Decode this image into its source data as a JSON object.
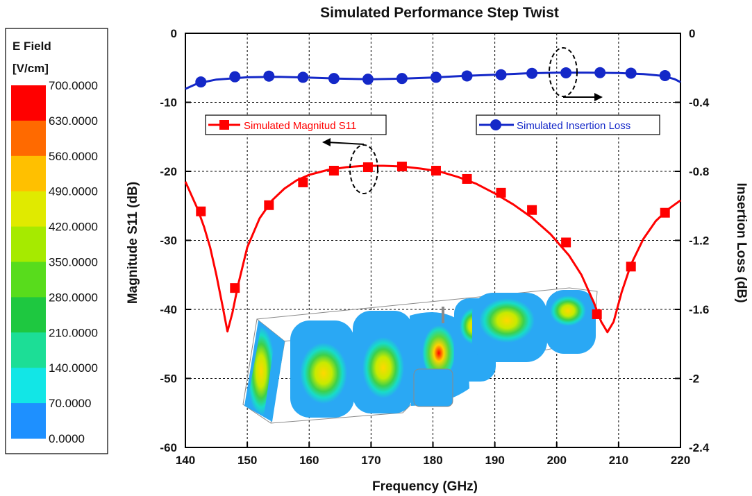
{
  "chart_data": {
    "type": "line",
    "title": "Simulated Performance Step Twist",
    "xlabel": "Frequency (GHz)",
    "ylabel": "Magnitude S11 (dB)",
    "y2label": "Insertion Loss (dB)",
    "xlim": [
      140,
      220
    ],
    "ylim": [
      -60,
      0
    ],
    "y2lim": [
      -2.4,
      0
    ],
    "x_ticks": [
      "140",
      "150",
      "160",
      "170",
      "180",
      "190",
      "200",
      "210",
      "220"
    ],
    "y_ticks": [
      "0",
      "-10",
      "-20",
      "-30",
      "-40",
      "-50",
      "-60"
    ],
    "y2_ticks": [
      "0",
      "-0.4",
      "-0.8",
      "-1.2",
      "-1.6",
      "-2",
      "-2.4"
    ],
    "grid": true,
    "series": [
      {
        "name": "Simulated Magnitud S11",
        "axis": "left",
        "color": "#ff0000",
        "marker": "square",
        "curve": [
          [
            140,
            -21.5
          ],
          [
            141,
            -23.5
          ],
          [
            142,
            -25.5
          ],
          [
            143,
            -28
          ],
          [
            144,
            -31
          ],
          [
            145,
            -35
          ],
          [
            146,
            -39.5
          ],
          [
            146.8,
            -43.2
          ],
          [
            147.6,
            -40.5
          ],
          [
            148.5,
            -36.5
          ],
          [
            150,
            -31
          ],
          [
            152,
            -26.8
          ],
          [
            154,
            -24.2
          ],
          [
            156,
            -22.5
          ],
          [
            158,
            -21.3
          ],
          [
            160,
            -20.5
          ],
          [
            163,
            -19.8
          ],
          [
            166,
            -19.4
          ],
          [
            169,
            -19.2
          ],
          [
            172,
            -19.2
          ],
          [
            175,
            -19.3
          ],
          [
            178,
            -19.6
          ],
          [
            181,
            -20
          ],
          [
            184,
            -20.8
          ],
          [
            187,
            -21.8
          ],
          [
            190,
            -23.2
          ],
          [
            193,
            -24.8
          ],
          [
            196,
            -26.7
          ],
          [
            199,
            -29.1
          ],
          [
            202,
            -32.2
          ],
          [
            204,
            -35
          ],
          [
            206,
            -39
          ],
          [
            207.2,
            -41.8
          ],
          [
            208.2,
            -43.3
          ],
          [
            209.2,
            -41.8
          ],
          [
            210.5,
            -37.5
          ],
          [
            212,
            -33.5
          ],
          [
            214,
            -29.8
          ],
          [
            216,
            -27.2
          ],
          [
            218,
            -25.5
          ],
          [
            220,
            -24.2
          ]
        ],
        "markers": [
          [
            142.5,
            -25.8
          ],
          [
            148,
            -36.9
          ],
          [
            153.5,
            -24.9
          ],
          [
            159,
            -21.6
          ],
          [
            164,
            -19.9
          ],
          [
            169.5,
            -19.4
          ],
          [
            175,
            -19.3
          ],
          [
            180.5,
            -19.9
          ],
          [
            185.5,
            -21.1
          ],
          [
            191,
            -23.1
          ],
          [
            196,
            -25.6
          ],
          [
            201.5,
            -30.3
          ],
          [
            206.5,
            -40.7
          ],
          [
            212,
            -33.8
          ],
          [
            217.5,
            -26
          ]
        ]
      },
      {
        "name": "Simulated Insertion Loss",
        "axis": "right",
        "color": "#1428c8",
        "marker": "circle",
        "curve": [
          [
            140,
            -0.322
          ],
          [
            142,
            -0.29
          ],
          [
            145,
            -0.268
          ],
          [
            150,
            -0.255
          ],
          [
            155,
            -0.252
          ],
          [
            160,
            -0.257
          ],
          [
            165,
            -0.263
          ],
          [
            170,
            -0.266
          ],
          [
            175,
            -0.263
          ],
          [
            180,
            -0.256
          ],
          [
            185,
            -0.247
          ],
          [
            190,
            -0.24
          ],
          [
            195,
            -0.232
          ],
          [
            200,
            -0.228
          ],
          [
            205,
            -0.228
          ],
          [
            210,
            -0.23
          ],
          [
            214,
            -0.236
          ],
          [
            217,
            -0.246
          ],
          [
            219,
            -0.265
          ],
          [
            220,
            -0.283
          ]
        ],
        "markers": [
          [
            142.5,
            -0.282
          ],
          [
            148,
            -0.252
          ],
          [
            153.5,
            -0.248
          ],
          [
            159,
            -0.255
          ],
          [
            164,
            -0.262
          ],
          [
            169.5,
            -0.266
          ],
          [
            175,
            -0.262
          ],
          [
            180.5,
            -0.255
          ],
          [
            185.5,
            -0.247
          ],
          [
            191,
            -0.24
          ],
          [
            196,
            -0.232
          ],
          [
            201.5,
            -0.229
          ],
          [
            207,
            -0.228
          ],
          [
            212,
            -0.231
          ],
          [
            217.5,
            -0.245
          ]
        ]
      }
    ],
    "legend_placement": "inside-top"
  },
  "colorbar": {
    "title_line1": "E Field",
    "title_line2": "[V/cm]",
    "labels": [
      "700.0000",
      "630.0000",
      "560.0000",
      "490.0000",
      "420.0000",
      "350.0000",
      "280.0000",
      "210.0000",
      "140.0000",
      "70.0000",
      "0.0000"
    ],
    "colors": [
      "#ff0000",
      "#ff6a00",
      "#ffc000",
      "#e0ea00",
      "#a6ea00",
      "#58dc1c",
      "#1ec840",
      "#1cde96",
      "#12e6e6",
      "#1e90ff",
      "#0a2bff"
    ]
  }
}
